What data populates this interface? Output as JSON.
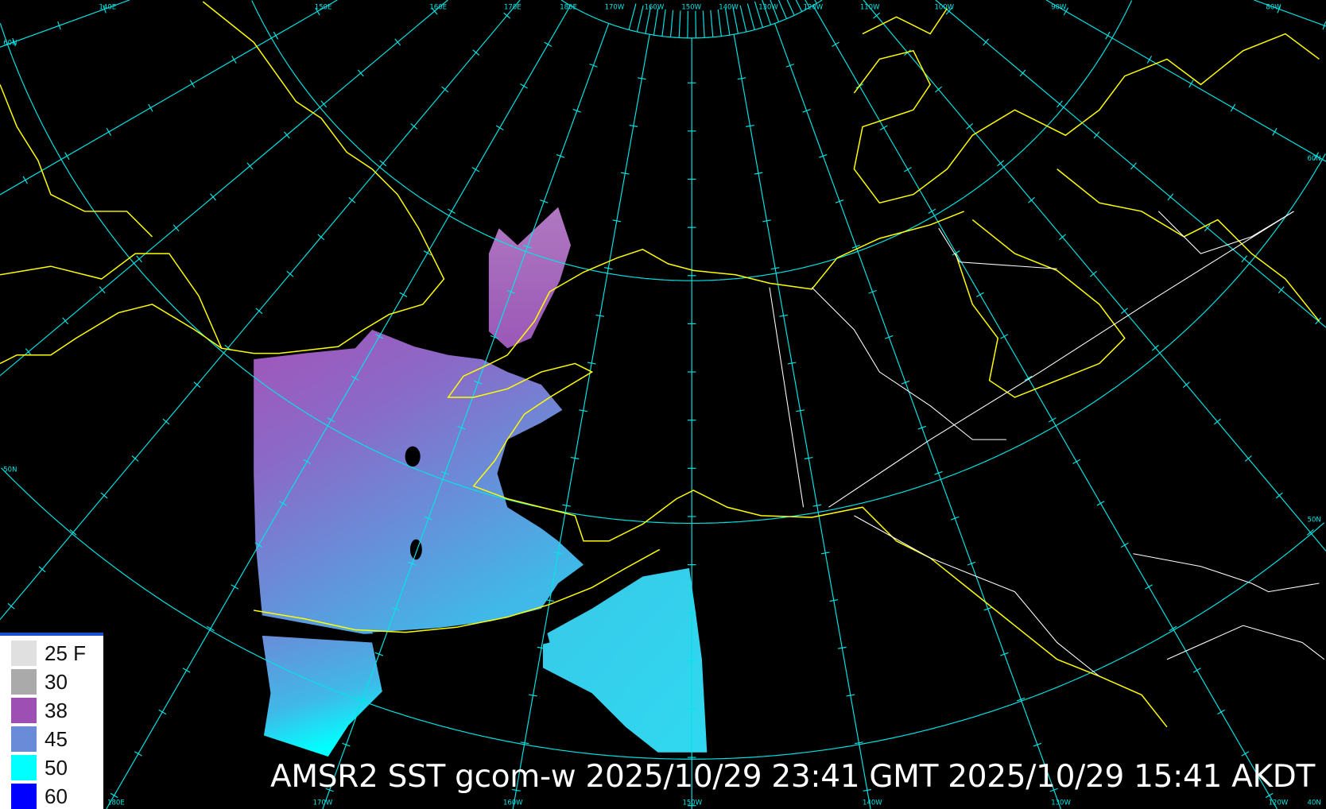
{
  "title": "AMSR2 SST gcom-w 2025/10/29 23:41 GMT 2025/10/29 15:41 AKDT",
  "legend": {
    "items": [
      {
        "label": "25 F",
        "color": "#e0e0e0"
      },
      {
        "label": "30",
        "color": "#aaaaaa"
      },
      {
        "label": "38",
        "color": "#9e4fb4"
      },
      {
        "label": "45",
        "color": "#6a8cd8"
      },
      {
        "label": "50",
        "color": "#00ffff"
      },
      {
        "label": "60",
        "color": "#0000ff"
      }
    ]
  },
  "grid_labels": {
    "top": [
      "140E",
      "150E",
      "160E",
      "170E",
      "180E",
      "170W",
      "160W",
      "150W",
      "140W",
      "130W",
      "120W",
      "110W",
      "100W",
      "90W",
      "80W"
    ],
    "left": [
      "60N",
      "50N"
    ],
    "right": [
      "60N",
      "50N"
    ],
    "bottom": [
      "180E",
      "170W",
      "160W",
      "150W",
      "140W",
      "130W",
      "120W",
      "40N"
    ]
  },
  "colors": {
    "graticule": "#00e5e5",
    "coastline": "#ffff00",
    "borders": "#ffffff",
    "background": "#000000"
  }
}
